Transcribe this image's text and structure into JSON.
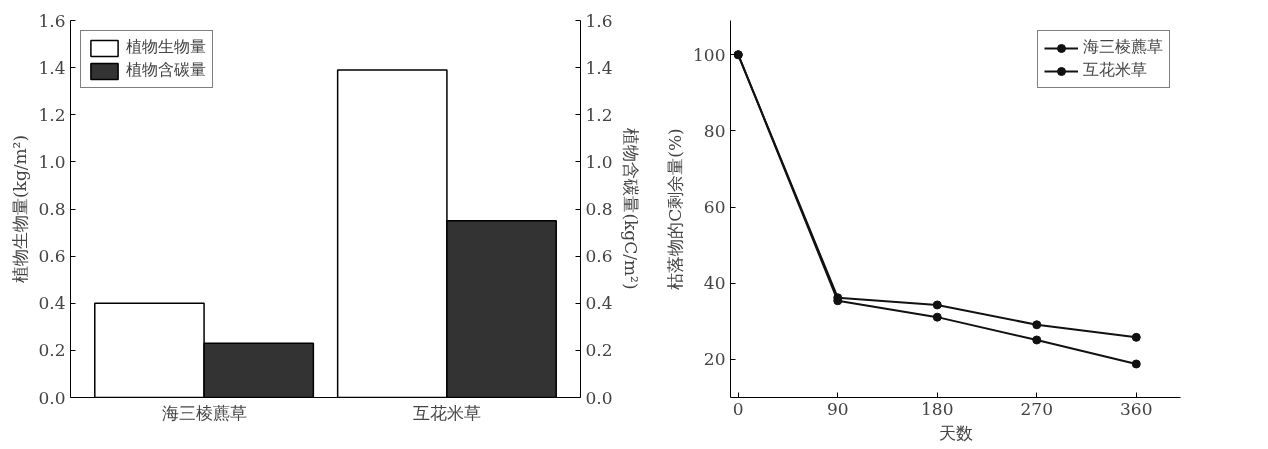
{
  "chart_data": [
    {
      "type": "bar",
      "categories": [
        "海三棱藨草",
        "互花米草"
      ],
      "ylabel": "植物生物量(kg/m²)",
      "y2label": "植物含碳量(kgC/m²)",
      "ylim": [
        0,
        1.6
      ],
      "yticks": [
        {
          "value": 0,
          "label": "0.0"
        },
        0.2,
        0.4,
        0.6,
        0.8,
        {
          "value": 1,
          "label": "1.0"
        },
        1.2,
        1.4,
        1.6
      ],
      "y2lim": [
        0,
        1.6
      ],
      "y2ticks": [
        {
          "value": 0,
          "label": "0.0"
        },
        0.2,
        0.4,
        0.6,
        0.8,
        {
          "value": 1,
          "label": "1.0"
        },
        1.2,
        1.4,
        1.6
      ],
      "grid": false,
      "legend": "top left",
      "series": [
        {
          "name": "植物生物量",
          "color": "#ffffff",
          "values": [
            0.4,
            1.39
          ]
        },
        {
          "name": "植物含碳量",
          "color": "#333333",
          "values": [
            0.23,
            0.75
          ]
        }
      ]
    },
    {
      "type": "line",
      "x": [
        0,
        90,
        180,
        270,
        360
      ],
      "xlabel": "天数",
      "ylabel": "枯落物的C剩余量(%)",
      "xlim": [
        -7,
        400
      ],
      "xticks": [
        0,
        90,
        180,
        270,
        360
      ],
      "ylim": [
        10,
        109
      ],
      "yticks": [
        20,
        40,
        60,
        80,
        100
      ],
      "grid": false,
      "legend": "top right",
      "marker": "circle",
      "line_style": "solid",
      "series": [
        {
          "name": "海三棱藨草",
          "color": "#111111",
          "values": [
            100,
            36.2,
            34.3,
            29.1,
            25.8
          ]
        },
        {
          "name": "互花米草",
          "color": "#111111",
          "values": [
            100,
            35.4,
            31.1,
            25.1,
            18.8
          ]
        }
      ]
    }
  ]
}
